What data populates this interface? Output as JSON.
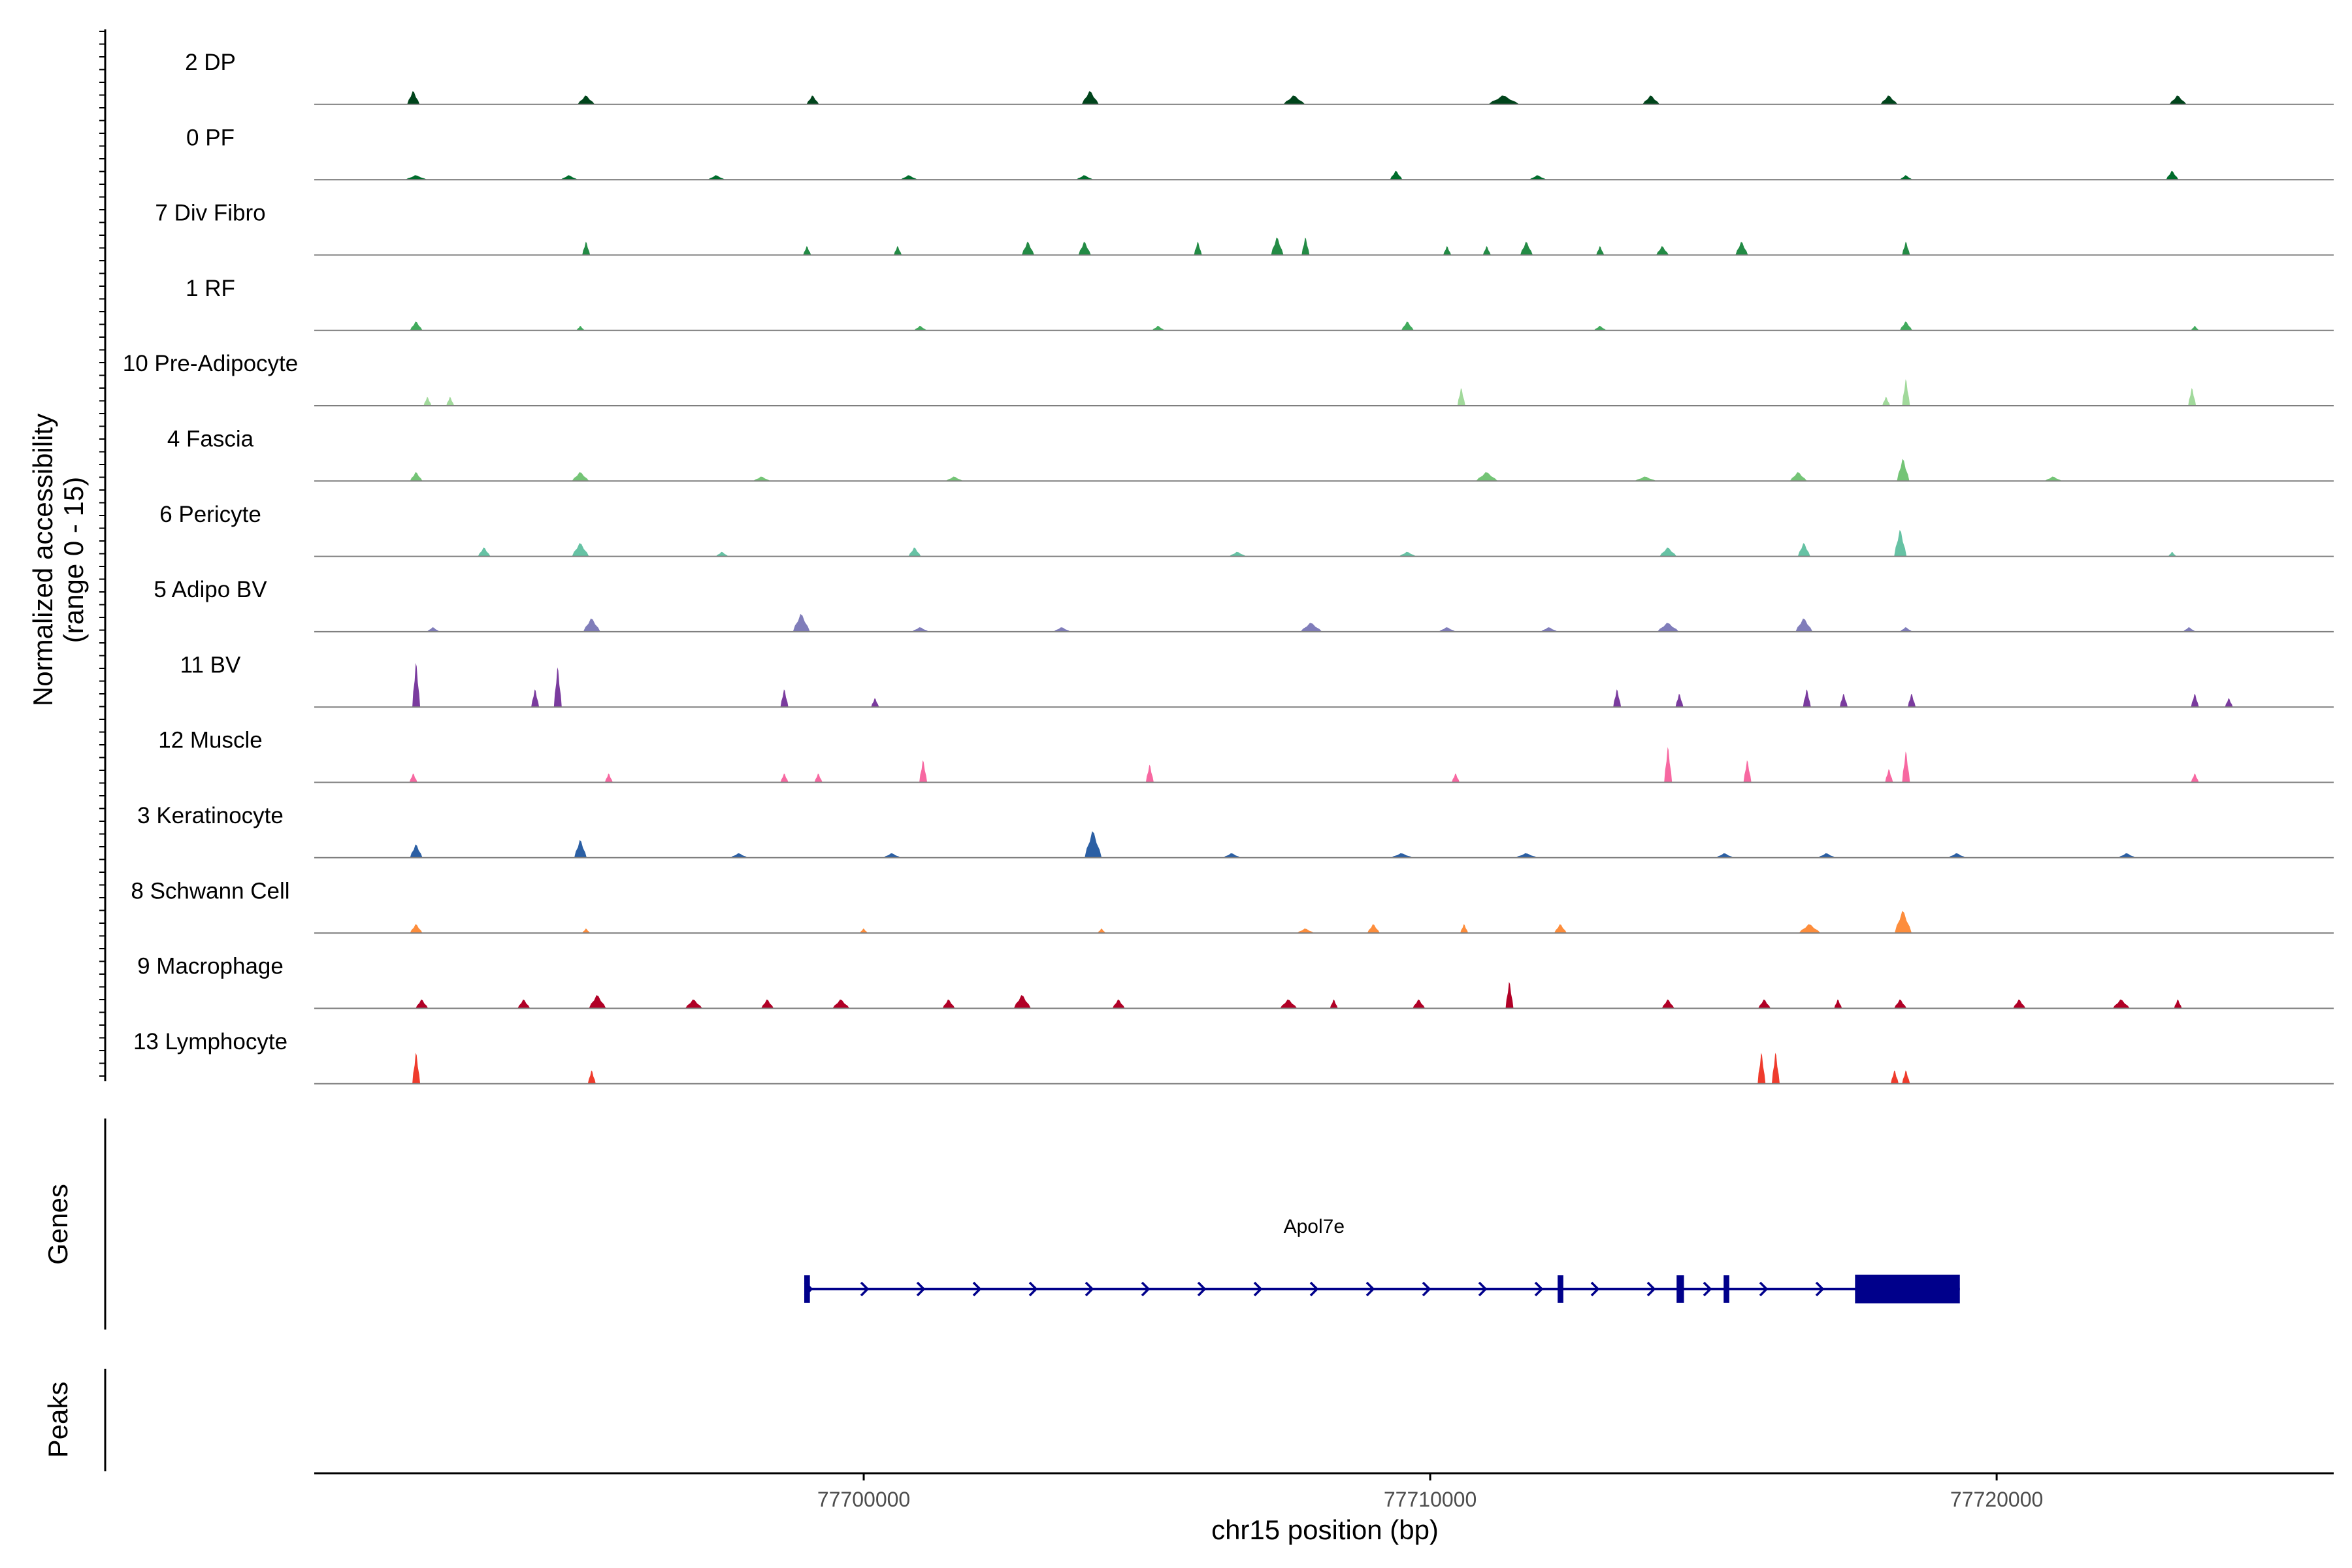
{
  "chart_data": {
    "type": "area",
    "title": "",
    "ylabel": "Normalized accessibility",
    "ylabel_sub": "(range 0 - 15)",
    "xlabel": "chr15 position (bp)",
    "xlim": [
      77690300,
      77725950
    ],
    "ylim": [
      0,
      15
    ],
    "x_ticks": [
      77700000,
      77710000,
      77720000
    ],
    "x_tick_labels": [
      "77700000",
      "77710000",
      "77720000"
    ],
    "tracks": [
      {
        "name": "2 DP",
        "color": "#00441b",
        "peaks": [
          [
            77692050,
            3,
            2
          ],
          [
            77695100,
            2,
            3
          ],
          [
            77699100,
            2,
            2
          ],
          [
            77704000,
            3,
            3
          ],
          [
            77707600,
            2,
            4
          ],
          [
            77711300,
            2,
            6
          ],
          [
            77713900,
            2,
            3
          ],
          [
            77718100,
            2,
            3
          ],
          [
            77723200,
            2,
            3
          ]
        ]
      },
      {
        "name": "0 PF",
        "color": "#006d2c",
        "peaks": [
          [
            77692100,
            1,
            4
          ],
          [
            77694800,
            1,
            3
          ],
          [
            77697400,
            1,
            3
          ],
          [
            77700800,
            1,
            3
          ],
          [
            77703900,
            1,
            3
          ],
          [
            77709400,
            2,
            2
          ],
          [
            77711900,
            1,
            3
          ],
          [
            77718400,
            1,
            2
          ],
          [
            77723100,
            2,
            2
          ]
        ]
      },
      {
        "name": "7 Div Fibro",
        "color": "#238b45",
        "peaks": [
          [
            77695100,
            3,
            1
          ],
          [
            77699000,
            2,
            1
          ],
          [
            77700600,
            2,
            1
          ],
          [
            77702900,
            3,
            2
          ],
          [
            77703900,
            3,
            2
          ],
          [
            77705900,
            3,
            1
          ],
          [
            77707300,
            4,
            2
          ],
          [
            77707800,
            4,
            1
          ],
          [
            77710300,
            2,
            1
          ],
          [
            77711000,
            2,
            1
          ],
          [
            77711700,
            3,
            2
          ],
          [
            77713000,
            2,
            1
          ],
          [
            77714100,
            2,
            2
          ],
          [
            77715500,
            3,
            2
          ],
          [
            77718400,
            3,
            1
          ]
        ]
      },
      {
        "name": "1 RF",
        "color": "#41ab5d",
        "peaks": [
          [
            77692100,
            2,
            2
          ],
          [
            77695000,
            1,
            1
          ],
          [
            77701000,
            1,
            2
          ],
          [
            77705200,
            1,
            2
          ],
          [
            77709600,
            2,
            2
          ],
          [
            77713000,
            1,
            2
          ],
          [
            77718400,
            2,
            2
          ],
          [
            77723500,
            1,
            1
          ]
        ]
      },
      {
        "name": "10 Pre-Adipocyte",
        "color": "#a1d99b",
        "peaks": [
          [
            77692300,
            2,
            1
          ],
          [
            77692700,
            2,
            1
          ],
          [
            77710550,
            4,
            1
          ],
          [
            77718050,
            2,
            1
          ],
          [
            77718400,
            6,
            1
          ],
          [
            77723450,
            4,
            1
          ]
        ]
      },
      {
        "name": "4 Fascia",
        "color": "#74c476",
        "peaks": [
          [
            77692100,
            2,
            2
          ],
          [
            77695000,
            2,
            3
          ],
          [
            77698200,
            1,
            3
          ],
          [
            77701600,
            1,
            3
          ],
          [
            77711000,
            2,
            4
          ],
          [
            77713800,
            1,
            4
          ],
          [
            77716500,
            2,
            3
          ],
          [
            77718350,
            5,
            2
          ],
          [
            77721000,
            1,
            3
          ]
        ]
      },
      {
        "name": "6 Pericyte",
        "color": "#66c2a4",
        "peaks": [
          [
            77693300,
            2,
            2
          ],
          [
            77695000,
            3,
            3
          ],
          [
            77697500,
            1,
            2
          ],
          [
            77700900,
            2,
            2
          ],
          [
            77706600,
            1,
            3
          ],
          [
            77709600,
            1,
            3
          ],
          [
            77714200,
            2,
            3
          ],
          [
            77716600,
            3,
            2
          ],
          [
            77718300,
            6,
            2
          ],
          [
            77723100,
            1,
            1
          ]
        ]
      },
      {
        "name": "5 Adipo BV",
        "color": "#807dba",
        "peaks": [
          [
            77692400,
            1,
            2
          ],
          [
            77695200,
            3,
            3
          ],
          [
            77698900,
            4,
            3
          ],
          [
            77701000,
            1,
            3
          ],
          [
            77703500,
            1,
            3
          ],
          [
            77707900,
            2,
            4
          ],
          [
            77710300,
            1,
            3
          ],
          [
            77712100,
            1,
            3
          ],
          [
            77714200,
            2,
            4
          ],
          [
            77716600,
            3,
            3
          ],
          [
            77718400,
            1,
            2
          ],
          [
            77723400,
            1,
            2
          ]
        ]
      },
      {
        "name": "11 BV",
        "color": "#7a3b9e",
        "peaks": [
          [
            77692100,
            10,
            1
          ],
          [
            77694200,
            4,
            1
          ],
          [
            77694600,
            9,
            1
          ],
          [
            77698600,
            4,
            1
          ],
          [
            77700200,
            2,
            1
          ],
          [
            77713300,
            4,
            1
          ],
          [
            77714400,
            3,
            1
          ],
          [
            77716650,
            4,
            1
          ],
          [
            77717300,
            3,
            1
          ],
          [
            77718500,
            3,
            1
          ],
          [
            77723500,
            3,
            1
          ],
          [
            77724100,
            2,
            1
          ]
        ]
      },
      {
        "name": "12 Muscle",
        "color": "#f768a1",
        "peaks": [
          [
            77692050,
            2,
            1
          ],
          [
            77695500,
            2,
            1
          ],
          [
            77698600,
            2,
            1
          ],
          [
            77699200,
            2,
            1
          ],
          [
            77701050,
            5,
            1
          ],
          [
            77705050,
            4,
            1
          ],
          [
            77710450,
            2,
            1
          ],
          [
            77714200,
            8,
            1
          ],
          [
            77715600,
            5,
            1
          ],
          [
            77718100,
            3,
            1
          ],
          [
            77718400,
            7,
            1
          ],
          [
            77723500,
            2,
            1
          ]
        ]
      },
      {
        "name": "3 Keratinocyte",
        "color": "#2b5fa4",
        "peaks": [
          [
            77692100,
            3,
            2
          ],
          [
            77695000,
            4,
            2
          ],
          [
            77697800,
            1,
            3
          ],
          [
            77700500,
            1,
            3
          ],
          [
            77704050,
            6,
            3
          ],
          [
            77706500,
            1,
            3
          ],
          [
            77709500,
            1,
            4
          ],
          [
            77711700,
            1,
            4
          ],
          [
            77715200,
            1,
            3
          ],
          [
            77717000,
            1,
            3
          ],
          [
            77719300,
            1,
            3
          ],
          [
            77722300,
            1,
            3
          ]
        ]
      },
      {
        "name": "8 Schwann Cell",
        "color": "#fd8d3c",
        "peaks": [
          [
            77692100,
            2,
            2
          ],
          [
            77695100,
            1,
            1
          ],
          [
            77700000,
            1,
            1
          ],
          [
            77704200,
            1,
            1
          ],
          [
            77707800,
            1,
            3
          ],
          [
            77709000,
            2,
            2
          ],
          [
            77710600,
            2,
            1
          ],
          [
            77712300,
            2,
            2
          ],
          [
            77716700,
            2,
            4
          ],
          [
            77718350,
            5,
            3
          ]
        ]
      },
      {
        "name": "9 Macrophage",
        "color": "#b10026",
        "peaks": [
          [
            77692200,
            2,
            2
          ],
          [
            77694000,
            2,
            2
          ],
          [
            77695300,
            3,
            3
          ],
          [
            77697000,
            2,
            3
          ],
          [
            77698300,
            2,
            2
          ],
          [
            77699600,
            2,
            3
          ],
          [
            77701500,
            2,
            2
          ],
          [
            77702800,
            3,
            3
          ],
          [
            77704500,
            2,
            2
          ],
          [
            77707500,
            2,
            3
          ],
          [
            77708300,
            2,
            1
          ],
          [
            77709800,
            2,
            2
          ],
          [
            77711400,
            6,
            1
          ],
          [
            77714200,
            2,
            2
          ],
          [
            77715900,
            2,
            2
          ],
          [
            77717200,
            2,
            1
          ],
          [
            77718300,
            2,
            2
          ],
          [
            77720400,
            2,
            2
          ],
          [
            77722200,
            2,
            3
          ],
          [
            77723200,
            2,
            1
          ]
        ]
      },
      {
        "name": "13 Lymphocyte",
        "color": "#ef3b2c",
        "peaks": [
          [
            77692100,
            7,
            1
          ],
          [
            77695200,
            3,
            1
          ],
          [
            77715850,
            7,
            1
          ],
          [
            77716100,
            7,
            1
          ],
          [
            77718200,
            3,
            1
          ],
          [
            77718400,
            3,
            1
          ]
        ]
      }
    ],
    "panels": [
      "Genes",
      "Peaks"
    ],
    "gene": {
      "name": "Apol7e",
      "strand": "+",
      "start": 77698950,
      "end": 77719350,
      "exons": [
        [
          77698950,
          77699050
        ],
        [
          77712250,
          77712350
        ],
        [
          77714350,
          77714480
        ],
        [
          77715180,
          77715280
        ],
        [
          77717500,
          77719350
        ]
      ],
      "color": "#00008b"
    }
  }
}
